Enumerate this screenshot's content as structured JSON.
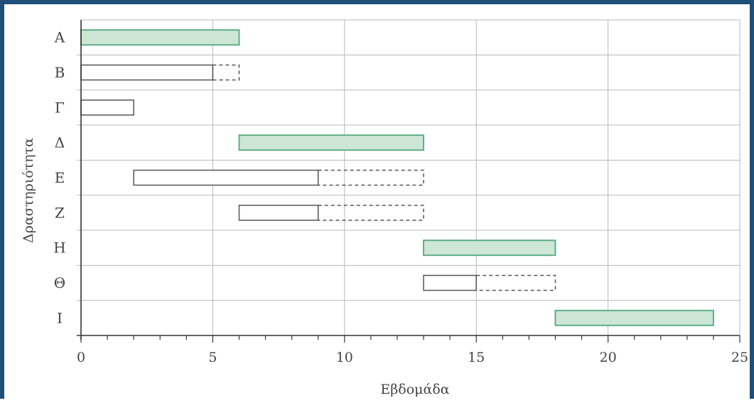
{
  "chart_data": {
    "type": "gantt",
    "title": "",
    "xlabel": "Εβδομάδα",
    "ylabel": "Δραστηριότητα",
    "xlim": [
      0,
      25
    ],
    "xticks": [
      0,
      5,
      10,
      15,
      20,
      25
    ],
    "grid": true,
    "categories": [
      "Α",
      "Β",
      "Γ",
      "Δ",
      "Ε",
      "Ζ",
      "Η",
      "Θ",
      "Ι"
    ],
    "tasks": [
      {
        "label": "Α",
        "start": 0,
        "end": 6,
        "slack_end": null,
        "critical": true
      },
      {
        "label": "Β",
        "start": 0,
        "end": 5,
        "slack_end": 6,
        "critical": false
      },
      {
        "label": "Γ",
        "start": 0,
        "end": 2,
        "slack_end": null,
        "critical": false
      },
      {
        "label": "Δ",
        "start": 6,
        "end": 13,
        "slack_end": null,
        "critical": true
      },
      {
        "label": "Ε",
        "start": 2,
        "end": 9,
        "slack_end": 13,
        "critical": false
      },
      {
        "label": "Ζ",
        "start": 6,
        "end": 9,
        "slack_end": 13,
        "critical": false
      },
      {
        "label": "Η",
        "start": 13,
        "end": 18,
        "slack_end": null,
        "critical": true
      },
      {
        "label": "Θ",
        "start": 13,
        "end": 15,
        "slack_end": 18,
        "critical": false
      },
      {
        "label": "Ι",
        "start": 18,
        "end": 24,
        "slack_end": null,
        "critical": true
      }
    ],
    "colors": {
      "critical_fill": "#cde6d6",
      "critical_stroke": "#5fae8a",
      "normal_fill": "#ffffff",
      "normal_stroke": "#555555",
      "grid": "#b9b9b9",
      "axis": "#333333"
    }
  }
}
